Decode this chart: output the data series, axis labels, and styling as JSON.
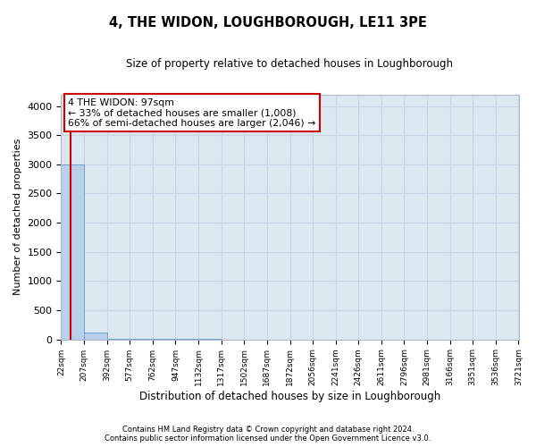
{
  "title": "4, THE WIDON, LOUGHBOROUGH, LE11 3PE",
  "subtitle": "Size of property relative to detached houses in Loughborough",
  "xlabel": "Distribution of detached houses by size in Loughborough",
  "ylabel": "Number of detached properties",
  "footer_line1": "Contains HM Land Registry data © Crown copyright and database right 2024.",
  "footer_line2": "Contains public sector information licensed under the Open Government Licence v3.0.",
  "bar_edges": [
    22,
    207,
    392,
    577,
    762,
    947,
    1132,
    1317,
    1502,
    1687,
    1872,
    2056,
    2241,
    2426,
    2611,
    2796,
    2981,
    3166,
    3351,
    3536,
    3721
  ],
  "bar_heights": [
    3000,
    120,
    15,
    8,
    5,
    3,
    2,
    1,
    1,
    1,
    1,
    0,
    0,
    0,
    0,
    0,
    0,
    0,
    0,
    0
  ],
  "bar_color": "#b8d0ea",
  "bar_edge_color": "#6699cc",
  "property_line_x": 97,
  "property_line_color": "#cc0000",
  "annotation_text_line1": "4 THE WIDON: 97sqm",
  "annotation_text_line2": "← 33% of detached houses are smaller (1,008)",
  "annotation_text_line3": "66% of semi-detached houses are larger (2,046) →",
  "annotation_box_facecolor": "#ffffff",
  "annotation_box_edgecolor": "#cc0000",
  "ylim": [
    0,
    4200
  ],
  "yticks": [
    0,
    500,
    1000,
    1500,
    2000,
    2500,
    3000,
    3500,
    4000
  ],
  "grid_color": "#c8d4e4",
  "bg_color": "#dce8f0",
  "tick_labels": [
    "22sqm",
    "207sqm",
    "392sqm",
    "577sqm",
    "762sqm",
    "947sqm",
    "1132sqm",
    "1317sqm",
    "1502sqm",
    "1687sqm",
    "1872sqm",
    "2056sqm",
    "2241sqm",
    "2426sqm",
    "2611sqm",
    "2796sqm",
    "2981sqm",
    "3166sqm",
    "3351sqm",
    "3536sqm",
    "3721sqm"
  ]
}
